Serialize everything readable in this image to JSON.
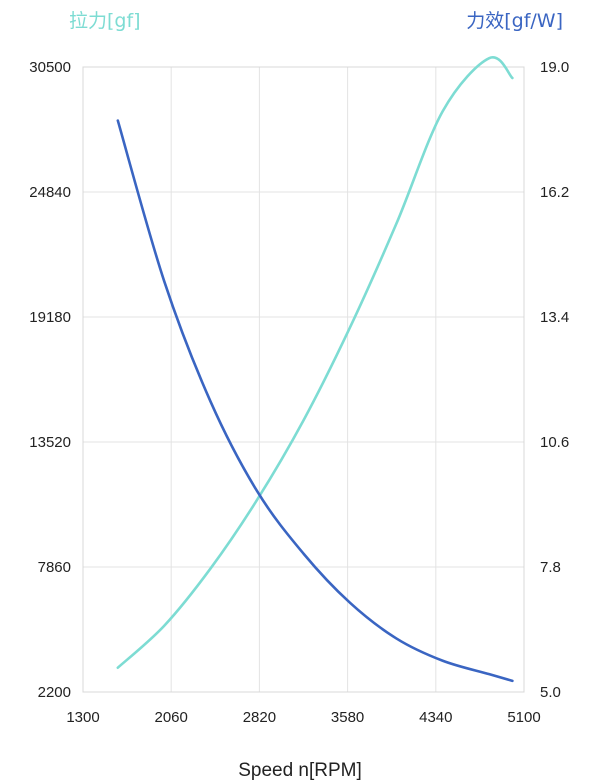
{
  "chart_data": {
    "type": "line",
    "title": "",
    "xlabel": "Speed n[RPM]",
    "ylabel_left": "拉力[gf]",
    "ylabel_right": "力效[gf/W]",
    "xlim": [
      1300,
      5100
    ],
    "ylim_left": [
      2200,
      30500
    ],
    "ylim_right": [
      5.0,
      19.0
    ],
    "x_ticks": [
      "1300",
      "2060",
      "2820",
      "3580",
      "4340",
      "5100"
    ],
    "y_left_ticks": [
      "2200",
      "7860",
      "13520",
      "19180",
      "24840",
      "30500"
    ],
    "y_right_ticks": [
      "5.0",
      "7.8",
      "10.6",
      "13.4",
      "16.2",
      "19.0"
    ],
    "grid": true,
    "legend": "none",
    "series": [
      {
        "name": "拉力[gf]",
        "axis": "left",
        "color": "#7ddcd3",
        "x": [
          1600,
          2000,
          2400,
          2800,
          3200,
          3600,
          4000,
          4400,
          4800,
          5000
        ],
        "y": [
          3300,
          5200,
          7800,
          10900,
          14500,
          18700,
          23400,
          28500,
          30900,
          30000
        ]
      },
      {
        "name": "力效[gf/W]",
        "axis": "right",
        "color": "#3a65c2",
        "x": [
          1600,
          2000,
          2400,
          2800,
          3200,
          3600,
          4000,
          4400,
          4800,
          5000
        ],
        "y": [
          17.8,
          14.2,
          11.5,
          9.5,
          8.1,
          7.0,
          6.2,
          5.7,
          5.4,
          5.25
        ]
      }
    ]
  }
}
